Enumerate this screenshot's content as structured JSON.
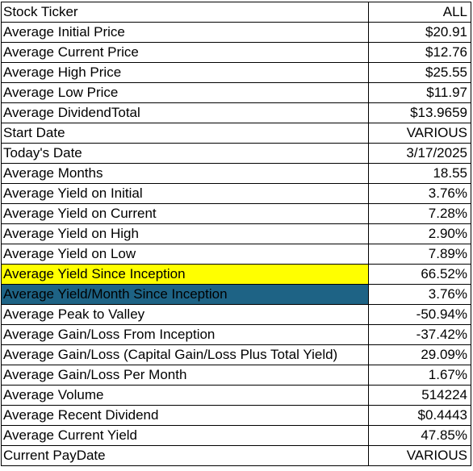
{
  "table": {
    "rows": [
      {
        "label": "Stock Ticker",
        "value": "ALL"
      },
      {
        "label": "Average Initial Price",
        "value": "$20.91"
      },
      {
        "label": "Average Current Price",
        "value": "$12.76"
      },
      {
        "label": "Average High Price",
        "value": "$25.55"
      },
      {
        "label": "Average Low Price",
        "value": "$11.97"
      },
      {
        "label": "Average DividendTotal",
        "value": "$13.9659"
      },
      {
        "label": "Start Date",
        "value": "VARIOUS"
      },
      {
        "label": "Today's Date",
        "value": "3/17/2025"
      },
      {
        "label": "Average Months",
        "value": "18.55"
      },
      {
        "label": "Average Yield on Initial",
        "value": "3.76%"
      },
      {
        "label": "Average Yield on Current",
        "value": "7.28%"
      },
      {
        "label": "Average Yield on High",
        "value": "2.90%"
      },
      {
        "label": "Average Yield on Low",
        "value": "7.89%"
      },
      {
        "label": "Average Yield Since Inception",
        "value": "66.52%",
        "highlight": "#ffff00"
      },
      {
        "label": "Average Yield/Month Since Inception",
        "value": "3.76%",
        "highlight": "#1e6385"
      },
      {
        "label": "Average Peak to Valley",
        "value": "-50.94%"
      },
      {
        "label": "Average Gain/Loss From Inception",
        "value": "-37.42%"
      },
      {
        "label": "Average Gain/Loss (Capital Gain/Loss Plus Total Yield)",
        "value": "29.09%"
      },
      {
        "label": "Average Gain/Loss Per Month",
        "value": "1.67%"
      },
      {
        "label": "Average Volume",
        "value": "514224"
      },
      {
        "label": "Average Recent Dividend",
        "value": "$0.4443"
      },
      {
        "label": "Average Current Yield",
        "value": "47.85%"
      },
      {
        "label": "Current PayDate",
        "value": "VARIOUS"
      }
    ]
  }
}
